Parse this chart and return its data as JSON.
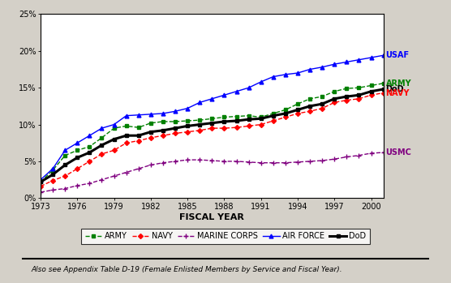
{
  "years": [
    1973,
    1974,
    1975,
    1976,
    1977,
    1978,
    1979,
    1980,
    1981,
    1982,
    1983,
    1984,
    1985,
    1986,
    1987,
    1988,
    1989,
    1990,
    1991,
    1992,
    1993,
    1994,
    1995,
    1996,
    1997,
    1998,
    1999,
    2000,
    2001
  ],
  "army": [
    2.2,
    3.8,
    5.8,
    6.5,
    7.0,
    8.2,
    9.5,
    9.8,
    9.6,
    10.2,
    10.4,
    10.4,
    10.5,
    10.6,
    10.8,
    11.0,
    11.1,
    11.2,
    11.0,
    11.5,
    12.0,
    12.8,
    13.5,
    13.8,
    14.5,
    14.9,
    15.0,
    15.3,
    15.6
  ],
  "navy": [
    1.6,
    2.4,
    3.0,
    4.0,
    5.0,
    6.0,
    6.5,
    7.5,
    7.8,
    8.2,
    8.5,
    8.8,
    9.0,
    9.2,
    9.5,
    9.5,
    9.6,
    9.8,
    10.0,
    10.5,
    11.0,
    11.5,
    11.8,
    12.2,
    13.0,
    13.3,
    13.5,
    14.0,
    14.3
  ],
  "usmc": [
    0.8,
    1.1,
    1.3,
    1.7,
    2.0,
    2.5,
    3.0,
    3.5,
    4.0,
    4.5,
    4.8,
    5.0,
    5.2,
    5.2,
    5.1,
    5.0,
    5.0,
    4.9,
    4.8,
    4.8,
    4.8,
    4.9,
    5.0,
    5.1,
    5.3,
    5.6,
    5.8,
    6.1,
    6.2
  ],
  "usaf": [
    2.5,
    4.0,
    6.5,
    7.5,
    8.5,
    9.5,
    10.0,
    11.2,
    11.3,
    11.4,
    11.5,
    11.8,
    12.2,
    13.0,
    13.5,
    14.0,
    14.5,
    15.0,
    15.8,
    16.5,
    16.8,
    17.0,
    17.5,
    17.8,
    18.2,
    18.5,
    18.8,
    19.1,
    19.4
  ],
  "dod": [
    2.2,
    3.2,
    4.5,
    5.5,
    6.2,
    7.2,
    8.0,
    8.5,
    8.5,
    9.0,
    9.2,
    9.5,
    9.8,
    10.0,
    10.2,
    10.4,
    10.5,
    10.7,
    10.8,
    11.2,
    11.5,
    12.0,
    12.5,
    12.8,
    13.5,
    13.8,
    14.0,
    14.5,
    14.8
  ],
  "army_color": "#008000",
  "navy_color": "#FF0000",
  "usmc_color": "#800080",
  "usaf_color": "#0000FF",
  "dod_color": "#000000",
  "xlabel": "FISCAL YEAR",
  "ylim": [
    0,
    25
  ],
  "yticks": [
    0,
    5,
    10,
    15,
    20,
    25
  ],
  "xticks": [
    1973,
    1976,
    1979,
    1982,
    1985,
    1988,
    1991,
    1994,
    1997,
    2000
  ],
  "footnote": "Also see Appendix Table D-19 (Female Enlisted Members by Service and Fiscal Year).",
  "legend_labels": [
    "ARMY",
    "NAVY",
    "MARINE CORPS",
    "AIR FORCE",
    "DoD"
  ],
  "right_labels": [
    "USAF",
    "ARMY",
    "DoD",
    "NAVY",
    "USMC"
  ],
  "right_label_colors": [
    "#0000FF",
    "#008000",
    "#000000",
    "#FF0000",
    "#800080"
  ],
  "right_label_yvals": [
    19.4,
    15.6,
    14.8,
    14.3,
    6.2
  ]
}
